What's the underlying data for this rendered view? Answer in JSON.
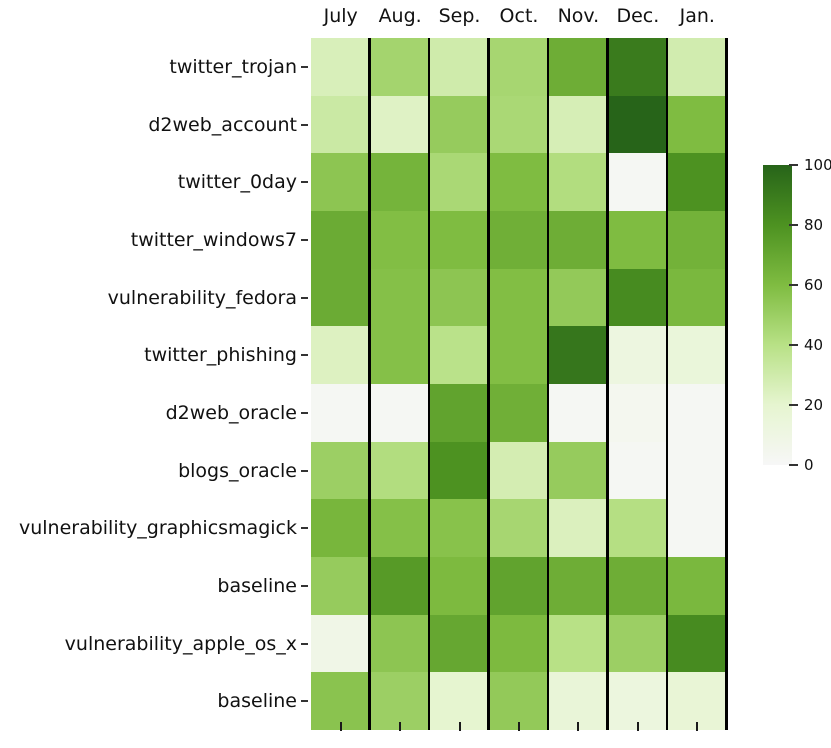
{
  "chart_data": {
    "type": "heatmap",
    "title": "",
    "xlabel": "",
    "ylabel": "",
    "columns": [
      "July",
      "Aug.",
      "Sep.",
      "Oct.",
      "Nov.",
      "Dec.",
      "Jan."
    ],
    "rows": [
      "twitter_trojan",
      "d2web_account",
      "twitter_0day",
      "twitter_windows7",
      "vulnerability_fedora",
      "twitter_phishing",
      "d2web_oracle",
      "blogs_oracle",
      "vulnerability_graphicsmagick",
      "baseline",
      "vulnerability_apple_os_x",
      "baseline"
    ],
    "values": [
      [
        26,
        47,
        30,
        46,
        67,
        90,
        29
      ],
      [
        32,
        23,
        52,
        45,
        27,
        100,
        60
      ],
      [
        55,
        64,
        45,
        60,
        42,
        2,
        80
      ],
      [
        68,
        59,
        60,
        66,
        67,
        60,
        65
      ],
      [
        68,
        58,
        55,
        59,
        53,
        83,
        62
      ],
      [
        24,
        58,
        39,
        59,
        92,
        12,
        15
      ],
      [
        2,
        2,
        72,
        66,
        2,
        4,
        2
      ],
      [
        50,
        42,
        80,
        28,
        52,
        2,
        2
      ],
      [
        63,
        58,
        57,
        46,
        25,
        41,
        2
      ],
      [
        52,
        76,
        61,
        72,
        67,
        67,
        62
      ],
      [
        8,
        55,
        70,
        61,
        40,
        50,
        83
      ],
      [
        56,
        50,
        20,
        53,
        16,
        13,
        17
      ]
    ],
    "vmin": 0,
    "vmax": 100,
    "colormap_stops": [
      {
        "value": 0,
        "color": "#f7f7f7"
      },
      {
        "value": 20,
        "color": "#e6f5d0"
      },
      {
        "value": 40,
        "color": "#b8e186"
      },
      {
        "value": 60,
        "color": "#7fbc41"
      },
      {
        "value": 80,
        "color": "#4d9221"
      },
      {
        "value": 100,
        "color": "#276419"
      }
    ],
    "grid_lines": "vertical-black",
    "legend_position": "right",
    "colorbar": {
      "tick_labels": [
        "0",
        "20",
        "40",
        "60",
        "80",
        "100"
      ],
      "tick_values": [
        0,
        20,
        40,
        60,
        80,
        100
      ],
      "min": 0,
      "max": 100
    }
  }
}
